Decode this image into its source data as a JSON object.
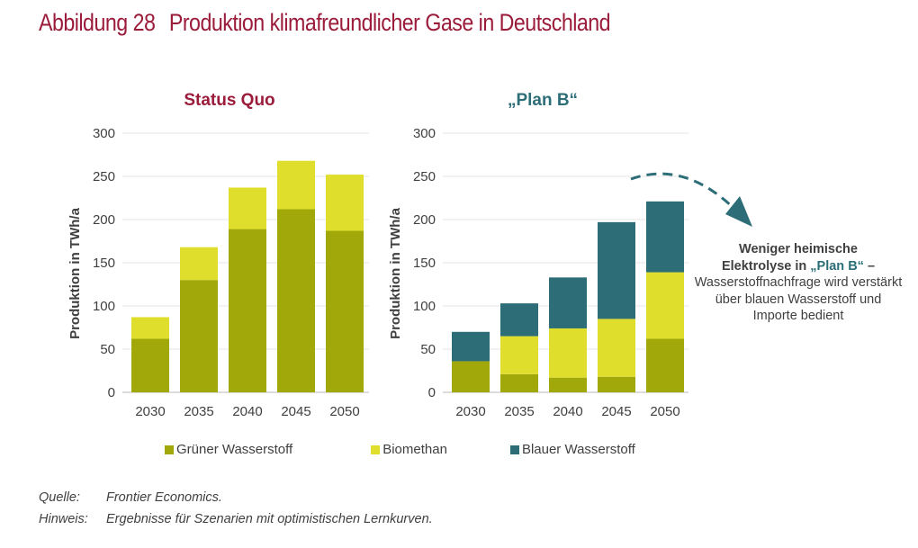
{
  "figure": {
    "number": "Abbildung 28",
    "title": "Produktion klimafreundlicher Gase in Deutschland"
  },
  "colors": {
    "title": "#9b1c3a",
    "green_h2": "#a0a80a",
    "biomethane": "#e0de2c",
    "blue_h2": "#2d6d78",
    "grid": "#e6e6e6",
    "text": "#404040"
  },
  "chart_data": [
    {
      "type": "bar",
      "stacked": true,
      "title": "Status Quo",
      "title_color": "#9b1c3a",
      "xlabel": "",
      "ylabel": "Produktion  in TWh/a",
      "ylim": [
        0,
        300
      ],
      "yticks": [
        "0",
        "50",
        "100",
        "150",
        "200",
        "250",
        "300"
      ],
      "grid": true,
      "categories": [
        "2030",
        "2035",
        "2040",
        "2045",
        "2050"
      ],
      "series": [
        {
          "name": "Grüner Wasserstoff",
          "values": [
            62,
            130,
            189,
            212,
            187
          ]
        },
        {
          "name": "Biomethan",
          "values": [
            25,
            38,
            48,
            56,
            65
          ]
        },
        {
          "name": "Blauer Wasserstoff",
          "values": [
            0,
            0,
            0,
            0,
            0
          ]
        }
      ]
    },
    {
      "type": "bar",
      "stacked": true,
      "title": "„Plan B“",
      "title_color": "#2d6d78",
      "xlabel": "",
      "ylabel": "Produktion  in TWh/a",
      "ylim": [
        0,
        300
      ],
      "yticks": [
        "0",
        "50",
        "100",
        "150",
        "200",
        "250",
        "300"
      ],
      "grid": true,
      "categories": [
        "2030",
        "2035",
        "2040",
        "2045",
        "2050"
      ],
      "series": [
        {
          "name": "Grüner Wasserstoff",
          "values": [
            36,
            21,
            17,
            18,
            62
          ]
        },
        {
          "name": "Biomethan",
          "values": [
            0,
            44,
            57,
            67,
            77
          ]
        },
        {
          "name": "Blauer Wasserstoff",
          "values": [
            34,
            38,
            59,
            112,
            82
          ]
        }
      ],
      "annotation": "Weniger heimische Elektrolyse in „Plan B“ – Wasserstoffnachfrage wird verstärkt über blauen Wasserstoff und Importe bedient"
    }
  ],
  "legend": {
    "placement": "bottom",
    "items": [
      {
        "label": "Grüner Wasserstoff",
        "color": "#a0a80a"
      },
      {
        "label": "Biomethan",
        "color": "#e0de2c"
      },
      {
        "label": "Blauer Wasserstoff",
        "color": "#2d6d78"
      }
    ]
  },
  "annotation": {
    "bold_part_1": "Weniger heimische",
    "bold_part_2": "Elektrolyse in ",
    "highlight": "„Plan B“",
    "bold_part_3": " –",
    "normal_text": "Wasserstoffnachfrage wird verstärkt über blauen Wasserstoff und Importe bedient"
  },
  "notes": [
    {
      "key": "Quelle:",
      "value": "Frontier Economics."
    },
    {
      "key": "Hinweis:",
      "value": "Ergebnisse für Szenarien mit optimistischen Lernkurven."
    }
  ]
}
